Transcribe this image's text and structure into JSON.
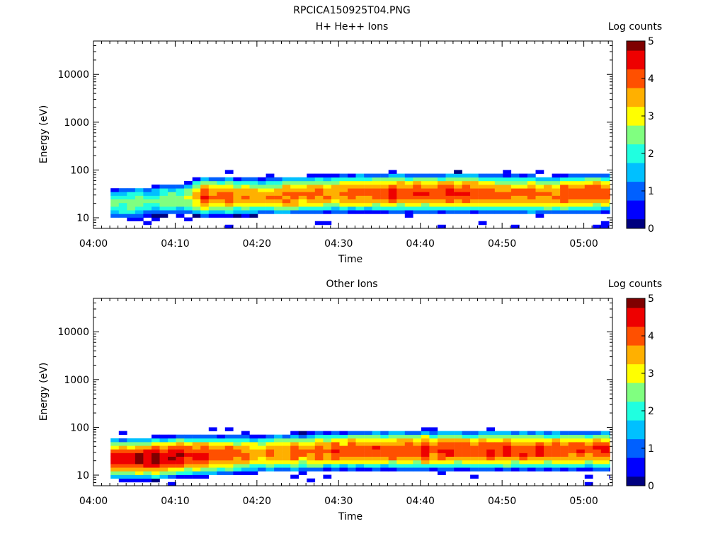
{
  "page_title": "RPCICA150925T04.PNG",
  "colormap": [
    "#00007f",
    "#0000ff",
    "#0060ff",
    "#00c0ff",
    "#20ffe0",
    "#80ff80",
    "#ffff00",
    "#ffb000",
    "#ff5000",
    "#ee0000",
    "#7f0000"
  ],
  "chart_data": [
    {
      "type": "heatmap",
      "title": "H+ He++ Ions",
      "xlabel": "Time",
      "ylabel": "Energy (eV)",
      "colorbar_label": "Log counts",
      "yscale": "log",
      "ylim": [
        6,
        50000
      ],
      "xlim_minutes": [
        0,
        63.5
      ],
      "x_ticks": [
        "04:00",
        "04:10",
        "04:20",
        "04:30",
        "04:40",
        "04:50",
        "05:00"
      ],
      "y_ticks": [
        "10",
        "100",
        "1000",
        "10000"
      ],
      "clim": [
        0,
        5
      ],
      "c_ticks": [
        "0",
        "1",
        "2",
        "3",
        "4",
        "5"
      ],
      "data_start_minute": 2.1,
      "data_end_minute": 63.2,
      "energy_range_ev": [
        6,
        100
      ],
      "sample_peaks": [
        {
          "time": "04:03",
          "peak_energy_ev": 20,
          "peak_log_counts": 2.4
        },
        {
          "time": "04:10",
          "peak_energy_ev": 25,
          "peak_log_counts": 2.4
        },
        {
          "time": "04:13",
          "peak_energy_ev": 28,
          "peak_log_counts": 4.2
        },
        {
          "time": "04:20",
          "peak_energy_ev": 28,
          "peak_log_counts": 3.6
        },
        {
          "time": "04:32",
          "peak_energy_ev": 33,
          "peak_log_counts": 4.1
        },
        {
          "time": "04:45",
          "peak_energy_ev": 33,
          "peak_log_counts": 4.3
        },
        {
          "time": "04:55",
          "peak_energy_ev": 30,
          "peak_log_counts": 3.9
        },
        {
          "time": "05:01",
          "peak_energy_ev": 33,
          "peak_log_counts": 4.1
        }
      ]
    },
    {
      "type": "heatmap",
      "title": "Other Ions",
      "xlabel": "Time",
      "ylabel": "Energy (eV)",
      "colorbar_label": "Log counts",
      "yscale": "log",
      "ylim": [
        6,
        50000
      ],
      "xlim_minutes": [
        0,
        63.5
      ],
      "x_ticks": [
        "04:00",
        "04:10",
        "04:20",
        "04:30",
        "04:40",
        "04:50",
        "05:00"
      ],
      "y_ticks": [
        "10",
        "100",
        "1000",
        "10000"
      ],
      "clim": [
        0,
        5
      ],
      "c_ticks": [
        "0",
        "1",
        "2",
        "3",
        "4",
        "5"
      ],
      "data_start_minute": 2.1,
      "data_end_minute": 63.2,
      "energy_range_ev": [
        6,
        100
      ],
      "sample_peaks": [
        {
          "time": "04:03",
          "peak_energy_ev": 22,
          "peak_log_counts": 4.6
        },
        {
          "time": "04:06",
          "peak_energy_ev": 22,
          "peak_log_counts": 4.8
        },
        {
          "time": "04:10",
          "peak_energy_ev": 25,
          "peak_log_counts": 4.7
        },
        {
          "time": "04:20",
          "peak_energy_ev": 28,
          "peak_log_counts": 3.7
        },
        {
          "time": "04:32",
          "peak_energy_ev": 33,
          "peak_log_counts": 4.1
        },
        {
          "time": "04:45",
          "peak_energy_ev": 33,
          "peak_log_counts": 4.3
        },
        {
          "time": "05:01",
          "peak_energy_ev": 33,
          "peak_log_counts": 4.1
        }
      ]
    }
  ]
}
